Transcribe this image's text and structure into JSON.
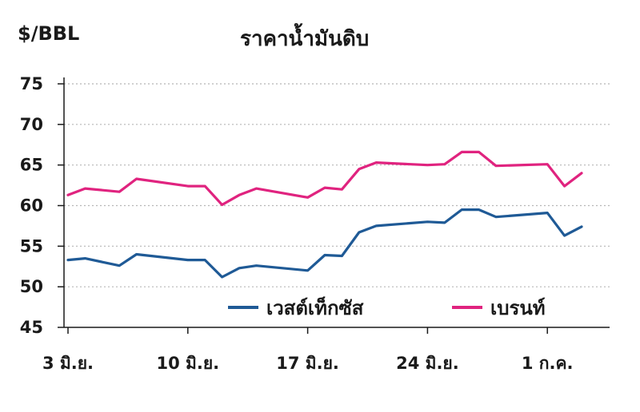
{
  "chart_data": {
    "type": "line",
    "title": "ราคาน้ำมันดิบ",
    "ylabel": "$/BBL",
    "ylim": [
      45,
      75
    ],
    "yticks": [
      45,
      50,
      55,
      60,
      65,
      70,
      75
    ],
    "xlim": [
      3,
      33
    ],
    "xticks": [
      {
        "x": 3,
        "label": "3 มิ.ย."
      },
      {
        "x": 10,
        "label": "10 มิ.ย."
      },
      {
        "x": 17,
        "label": "17 มิ.ย."
      },
      {
        "x": 24,
        "label": "24 มิ.ย."
      },
      {
        "x": 31,
        "label": "1 ก.ค."
      }
    ],
    "grid": "horizontal-dotted",
    "legend_position": "bottom-right",
    "series": [
      {
        "name": "เวสต์เท็กซัส",
        "color": "#1f5a96",
        "points": [
          [
            3,
            53.3
          ],
          [
            4,
            53.5
          ],
          [
            6,
            52.6
          ],
          [
            7,
            54.0
          ],
          [
            10,
            53.3
          ],
          [
            11,
            53.3
          ],
          [
            12,
            51.2
          ],
          [
            13,
            52.3
          ],
          [
            14,
            52.6
          ],
          [
            17,
            52.0
          ],
          [
            18,
            53.9
          ],
          [
            19,
            53.8
          ],
          [
            20,
            56.7
          ],
          [
            21,
            57.5
          ],
          [
            24,
            58.0
          ],
          [
            25,
            57.9
          ],
          [
            26,
            59.5
          ],
          [
            27,
            59.5
          ],
          [
            28,
            58.6
          ],
          [
            31,
            59.1
          ],
          [
            32,
            56.3
          ],
          [
            33,
            57.4
          ]
        ]
      },
      {
        "name": "เบรนท์",
        "color": "#e0237f",
        "points": [
          [
            3,
            61.3
          ],
          [
            4,
            62.1
          ],
          [
            6,
            61.7
          ],
          [
            7,
            63.3
          ],
          [
            10,
            62.4
          ],
          [
            11,
            62.4
          ],
          [
            12,
            60.1
          ],
          [
            13,
            61.3
          ],
          [
            14,
            62.1
          ],
          [
            17,
            61.0
          ],
          [
            18,
            62.2
          ],
          [
            19,
            62.0
          ],
          [
            20,
            64.5
          ],
          [
            21,
            65.3
          ],
          [
            24,
            65.0
          ],
          [
            25,
            65.1
          ],
          [
            26,
            66.6
          ],
          [
            27,
            66.6
          ],
          [
            28,
            64.9
          ],
          [
            31,
            65.1
          ],
          [
            32,
            62.4
          ],
          [
            33,
            64.0
          ]
        ]
      }
    ]
  }
}
